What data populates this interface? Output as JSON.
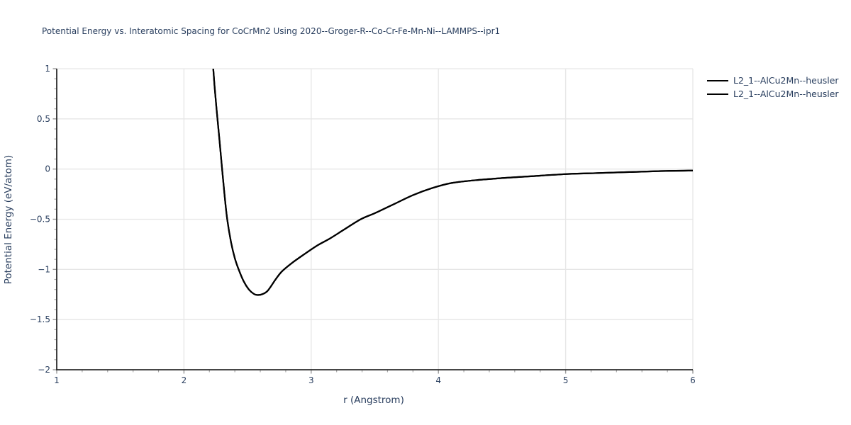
{
  "colors": {
    "text": "#2a3f5f",
    "grid": "#e6e6e6",
    "axis_line": "#2b2b2b",
    "major_tick": "#999999",
    "minor_tick": "#aaaaaa",
    "curve": "#000000",
    "background": "#ffffff"
  },
  "chart_data": {
    "type": "line",
    "title": "Potential Energy vs. Interatomic Spacing for CoCrMn2 Using 2020--Groger-R--Co-Cr-Fe-Mn-Ni--LAMMPS--ipr1",
    "xlabel": "r (Angstrom)",
    "ylabel": "Potential Energy (eV/atom)",
    "xlim": [
      1,
      6
    ],
    "ylim": [
      -2,
      1
    ],
    "x_major_ticks": [
      1,
      2,
      3,
      4,
      5,
      6
    ],
    "x_tick_labels": [
      "1",
      "2",
      "3",
      "4",
      "5",
      "6"
    ],
    "x_minor_step": 0.2,
    "y_major_ticks": [
      1,
      0.5,
      0,
      -0.5,
      -1,
      -1.5,
      -2
    ],
    "y_tick_labels": [
      "1",
      "0.5",
      "0",
      "−0.5",
      "−1",
      "−1.5",
      "−2"
    ],
    "y_minor_step": 0.1,
    "grid": true,
    "legend_position": "top-right-outside",
    "series": [
      {
        "name": "L2_1--AlCu2Mn--heusler",
        "color": "#000000",
        "width": 2.2
      },
      {
        "name": "L2_1--AlCu2Mn--heusler",
        "color": "#000000",
        "width": 2.2
      }
    ],
    "points": {
      "r": [
        2.2,
        2.22,
        2.24,
        2.26,
        2.28,
        2.3,
        2.32,
        2.34,
        2.37,
        2.4,
        2.43,
        2.47,
        2.51,
        2.55,
        2.58,
        2.62,
        2.66,
        2.72,
        2.77,
        2.85,
        2.95,
        3.05,
        3.15,
        3.25,
        3.39,
        3.5,
        3.65,
        3.8,
        3.95,
        4.1,
        4.3,
        4.5,
        4.75,
        5.0,
        5.25,
        5.5,
        5.75,
        6.0
      ],
      "E": [
        1.55,
        1.18,
        0.83,
        0.55,
        0.28,
        0.0,
        -0.27,
        -0.5,
        -0.73,
        -0.89,
        -1.0,
        -1.12,
        -1.2,
        -1.245,
        -1.255,
        -1.245,
        -1.21,
        -1.1,
        -1.02,
        -0.935,
        -0.845,
        -0.76,
        -0.69,
        -0.61,
        -0.5,
        -0.44,
        -0.35,
        -0.26,
        -0.19,
        -0.14,
        -0.11,
        -0.09,
        -0.07,
        -0.05,
        -0.04,
        -0.03,
        -0.02,
        -0.015
      ]
    },
    "minimum_estimate": {
      "r": 2.57,
      "E": -1.26
    }
  }
}
